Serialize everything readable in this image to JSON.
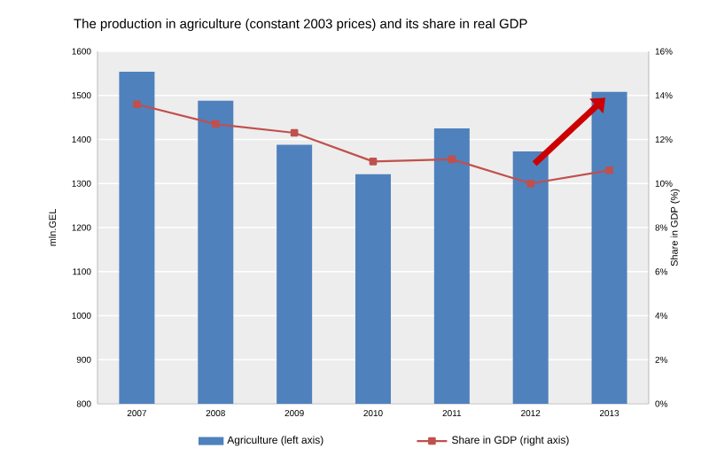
{
  "chart_data": {
    "type": "bar",
    "title": "The  production in agriculture (constant 2003 prices) and its share in real GDP",
    "categories": [
      "2007",
      "2008",
      "2009",
      "2010",
      "2011",
      "2012",
      "2013"
    ],
    "series": [
      {
        "name": "Agriculture (left axis)",
        "color": "#4f81bd",
        "values": [
          1554,
          1488,
          1388,
          1321,
          1425,
          1373,
          1508
        ]
      },
      {
        "name": "Share in GDP (right axis)",
        "type": "line",
        "axis": "y2",
        "color": "#c0504d",
        "marker": "square",
        "values": [
          13.6,
          12.7,
          12.3,
          11.0,
          11.1,
          10.0,
          10.6
        ]
      }
    ],
    "ylabel": "mln.GEL",
    "y2label": "Share in GDP (%)",
    "ylim": [
      800,
      1600
    ],
    "yticks": [
      800,
      900,
      1000,
      1100,
      1200,
      1300,
      1400,
      1500,
      1600
    ],
    "y2lim": [
      0,
      16
    ],
    "y2ticks": [
      {
        "value": 0,
        "label": "0%"
      },
      {
        "value": 2,
        "label": "2%"
      },
      {
        "value": 4,
        "label": "4%"
      },
      {
        "value": 6,
        "label": "6%"
      },
      {
        "value": 8,
        "label": "8%"
      },
      {
        "value": 10,
        "label": "10%"
      },
      {
        "value": 12,
        "label": "12%"
      },
      {
        "value": 14,
        "label": "14%"
      },
      {
        "value": 16,
        "label": "16%"
      }
    ],
    "grid": "y",
    "legend": "bottom"
  }
}
